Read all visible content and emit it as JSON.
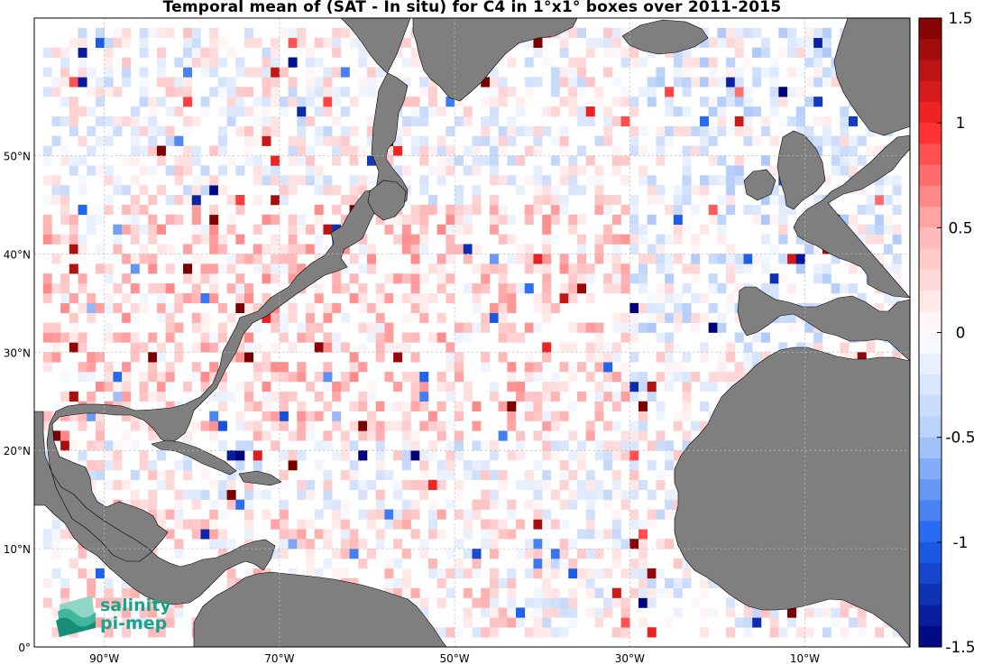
{
  "title": "Temporal mean of (SAT - In situ) for C4 in 1°x1° boxes over 2011-2015",
  "lon_ticks": [
    {
      "label": "90°W",
      "lon": -90
    },
    {
      "label": "70°W",
      "lon": -70
    },
    {
      "label": "50°W",
      "lon": -50
    },
    {
      "label": "30°W",
      "lon": -30
    },
    {
      "label": "10°W",
      "lon": -10
    }
  ],
  "lat_ticks": [
    {
      "label": "50°N",
      "lat": 50
    },
    {
      "label": "40°N",
      "lat": 40
    },
    {
      "label": "30°N",
      "lat": 30
    },
    {
      "label": "20°N",
      "lat": 20
    },
    {
      "label": "10°N",
      "lat": 10
    },
    {
      "label": "0°",
      "lat": 0
    }
  ],
  "colorbar": {
    "min": -1.5,
    "max": 1.5,
    "ticks": [
      {
        "label": "1.5",
        "value": 1.5
      },
      {
        "label": "1",
        "value": 1
      },
      {
        "label": "0.5",
        "value": 0.5
      },
      {
        "label": "0",
        "value": 0
      },
      {
        "label": "-0.5",
        "value": -0.5
      },
      {
        "label": "-1",
        "value": -1
      },
      {
        "label": "-1.5",
        "value": -1.5
      }
    ]
  },
  "colors": {
    "land": "#7f7f7f",
    "ocean": "#ffffff",
    "positive_max": "#7a0000",
    "negative_max": "#00007a",
    "logo": "#17a58c"
  },
  "logo": {
    "line1": "salinity",
    "line2": "pi-mep"
  },
  "map_extent": {
    "lon": [
      -98,
      2
    ],
    "lat": [
      0,
      64
    ]
  }
}
